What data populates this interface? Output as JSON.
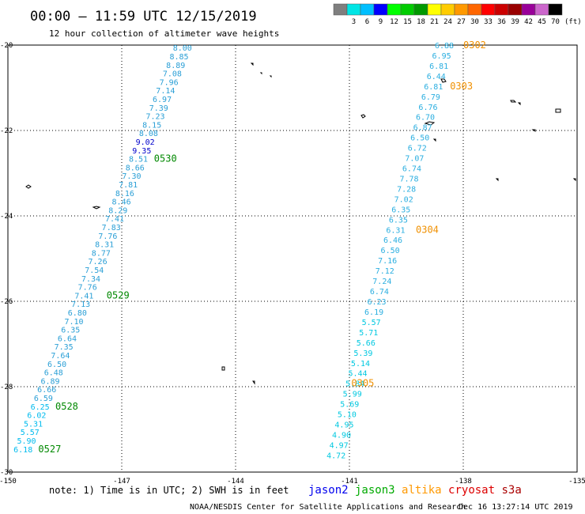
{
  "header": {
    "title": "00:00 — 11:59 UTC 12/15/2019",
    "subtitle": "12 hour collection of altimeter wave heights"
  },
  "colorbar": {
    "unit": "(ft)",
    "stops": [
      {
        "label": "",
        "color": "#7f7f7f"
      },
      {
        "label": "3",
        "color": "#00e5e5"
      },
      {
        "label": "6",
        "color": "#00bfff"
      },
      {
        "label": "9",
        "color": "#0000ff"
      },
      {
        "label": "12",
        "color": "#00ff00"
      },
      {
        "label": "15",
        "color": "#00cc00"
      },
      {
        "label": "18",
        "color": "#009900"
      },
      {
        "label": "21",
        "color": "#ffff00"
      },
      {
        "label": "24",
        "color": "#ffcc00"
      },
      {
        "label": "27",
        "color": "#ff9900"
      },
      {
        "label": "30",
        "color": "#ff6600"
      },
      {
        "label": "33",
        "color": "#ff0000"
      },
      {
        "label": "36",
        "color": "#cc0000"
      },
      {
        "label": "39",
        "color": "#990000"
      },
      {
        "label": "42",
        "color": "#990099"
      },
      {
        "label": "45",
        "color": "#cc66cc"
      },
      {
        "label": "70",
        "color": "#000000"
      }
    ]
  },
  "axes": {
    "lon_ticks": [
      "-150",
      "-147",
      "-144",
      "-141",
      "-138",
      "-135"
    ],
    "lat_ticks": [
      "-20",
      "-22",
      "-24",
      "-26",
      "-28",
      "-30"
    ]
  },
  "tracks": [
    {
      "color": "#2a9fd6",
      "points": [
        {
          "lat": -20.06,
          "v": "8.00"
        },
        {
          "lat": -20.26,
          "v": "8.85"
        },
        {
          "lat": -20.46,
          "v": "8.89"
        },
        {
          "lat": -20.66,
          "v": "7.08"
        },
        {
          "lat": -20.86,
          "v": "7.96"
        },
        {
          "lat": -21.06,
          "v": "7.14"
        },
        {
          "lat": -21.26,
          "v": "6.97"
        },
        {
          "lat": -21.46,
          "v": "7.39"
        },
        {
          "lat": -21.66,
          "v": "7.23"
        },
        {
          "lat": -21.86,
          "v": "8.15"
        },
        {
          "lat": -22.06,
          "v": "8.08"
        },
        {
          "lat": -22.26,
          "v": "9.02",
          "c": "#0000cc"
        },
        {
          "lat": -22.46,
          "v": "9.35",
          "c": "#0000cc"
        },
        {
          "lat": -22.66,
          "v": "8.51"
        },
        {
          "lat": -22.86,
          "v": "8.66"
        },
        {
          "lat": -23.06,
          "v": "7.30"
        },
        {
          "lat": -23.26,
          "v": "7.81"
        },
        {
          "lat": -23.46,
          "v": "8.16"
        },
        {
          "lat": -23.66,
          "v": "8.46"
        },
        {
          "lat": -23.86,
          "v": "8.29"
        },
        {
          "lat": -24.06,
          "v": "7.41"
        },
        {
          "lat": -24.26,
          "v": "7.83"
        },
        {
          "lat": -24.46,
          "v": "7.76"
        },
        {
          "lat": -24.66,
          "v": "8.31"
        },
        {
          "lat": -24.86,
          "v": "8.77"
        },
        {
          "lat": -25.06,
          "v": "7.26"
        },
        {
          "lat": -25.26,
          "v": "7.54"
        },
        {
          "lat": -25.46,
          "v": "7.34"
        },
        {
          "lat": -25.66,
          "v": "7.76"
        },
        {
          "lat": -25.86,
          "v": "7.41"
        },
        {
          "lat": -26.06,
          "v": "7.13"
        },
        {
          "lat": -26.26,
          "v": "6.80"
        },
        {
          "lat": -26.46,
          "v": "7.10"
        },
        {
          "lat": -26.66,
          "v": "6.35"
        },
        {
          "lat": -26.86,
          "v": "6.64"
        },
        {
          "lat": -27.06,
          "v": "7.35"
        },
        {
          "lat": -27.26,
          "v": "7.64"
        },
        {
          "lat": -27.46,
          "v": "6.50"
        },
        {
          "lat": -27.66,
          "v": "6.48"
        },
        {
          "lat": -27.86,
          "v": "6.89"
        },
        {
          "lat": -28.06,
          "v": "6.66"
        },
        {
          "lat": -28.26,
          "v": "6.59"
        },
        {
          "lat": -28.46,
          "v": "6.25",
          "c": "#00bbee"
        },
        {
          "lat": -28.66,
          "v": "6.02",
          "c": "#00bbee"
        },
        {
          "lat": -28.86,
          "v": "5.31",
          "c": "#00bbee"
        },
        {
          "lat": -29.06,
          "v": "5.57",
          "c": "#00bbee"
        },
        {
          "lat": -29.26,
          "v": "5.90",
          "c": "#00bbee"
        },
        {
          "lat": -29.46,
          "v": "6.18",
          "c": "#00bbee"
        }
      ],
      "time_labels": [
        {
          "text": "0530",
          "lon": -146.15,
          "lat": -22.66
        },
        {
          "text": "0529",
          "lon": -147.4,
          "lat": -25.86
        },
        {
          "text": "0528",
          "lon": -148.75,
          "lat": -28.46
        },
        {
          "text": "0527",
          "lon": -149.2,
          "lat": -29.46
        }
      ],
      "time_color": "#008800"
    },
    {
      "color": "#2aaee0",
      "points": [
        {
          "lat": -20.0,
          "v": "6.88"
        },
        {
          "lat": -20.24,
          "v": "6.95"
        },
        {
          "lat": -20.48,
          "v": "6.81"
        },
        {
          "lat": -20.72,
          "v": "6.44"
        },
        {
          "lat": -20.96,
          "v": "6.81"
        },
        {
          "lat": -21.2,
          "v": "6.79"
        },
        {
          "lat": -21.44,
          "v": "6.76"
        },
        {
          "lat": -21.68,
          "v": "6.70"
        },
        {
          "lat": -21.92,
          "v": "6.87"
        },
        {
          "lat": -22.16,
          "v": "6.50"
        },
        {
          "lat": -22.4,
          "v": "6.72"
        },
        {
          "lat": -22.64,
          "v": "7.07"
        },
        {
          "lat": -22.88,
          "v": "6.74"
        },
        {
          "lat": -23.12,
          "v": "7.78"
        },
        {
          "lat": -23.36,
          "v": "7.28"
        },
        {
          "lat": -23.6,
          "v": "7.02"
        },
        {
          "lat": -23.84,
          "v": "6.35"
        },
        {
          "lat": -24.08,
          "v": "6.35"
        },
        {
          "lat": -24.32,
          "v": "6.31"
        },
        {
          "lat": -24.56,
          "v": "6.46"
        },
        {
          "lat": -24.8,
          "v": "6.50"
        },
        {
          "lat": -25.04,
          "v": "7.16"
        },
        {
          "lat": -25.28,
          "v": "7.12"
        },
        {
          "lat": -25.52,
          "v": "7.24"
        },
        {
          "lat": -25.76,
          "v": "6.74"
        },
        {
          "lat": -26.0,
          "v": "6.23"
        },
        {
          "lat": -26.24,
          "v": "6.19"
        },
        {
          "lat": -26.48,
          "v": "5.57",
          "c": "#00c8e0"
        },
        {
          "lat": -26.72,
          "v": "5.71",
          "c": "#00c8e0"
        },
        {
          "lat": -26.96,
          "v": "5.66",
          "c": "#00c8e0"
        },
        {
          "lat": -27.2,
          "v": "5.39",
          "c": "#00c8e0"
        },
        {
          "lat": -27.44,
          "v": "5.14",
          "c": "#00c8e0"
        },
        {
          "lat": -27.68,
          "v": "5.44",
          "c": "#00c8e0"
        },
        {
          "lat": -27.92,
          "v": "5.84",
          "c": "#00c8e0"
        },
        {
          "lat": -28.16,
          "v": "5.99",
          "c": "#00c8e0"
        },
        {
          "lat": -28.4,
          "v": "5.69",
          "c": "#00c8e0"
        },
        {
          "lat": -28.64,
          "v": "5.10",
          "c": "#00c8e0"
        },
        {
          "lat": -28.88,
          "v": "4.95",
          "c": "#00c8e0"
        },
        {
          "lat": -29.12,
          "v": "4.90",
          "c": "#00c8e0"
        },
        {
          "lat": -29.36,
          "v": "4.97",
          "c": "#00c8e0"
        },
        {
          "lat": -29.6,
          "v": "4.72",
          "c": "#00c8e0"
        }
      ],
      "time_labels": [
        {
          "text": "0302",
          "lon": -138.0,
          "lat": -20.0
        },
        {
          "text": "0303",
          "lon": -138.35,
          "lat": -20.96
        },
        {
          "text": "0304",
          "lon": -139.25,
          "lat": -24.32
        },
        {
          "text": "0305",
          "lon": -140.95,
          "lat": -27.92
        }
      ],
      "time_color": "#f09000"
    }
  ],
  "footer": {
    "note": "note: 1) Time is in UTC; 2) SWH is in feet",
    "missions": [
      {
        "text": "jason2",
        "color": "#0000ee"
      },
      {
        "text": "jason3",
        "color": "#00aa00"
      },
      {
        "text": "altika",
        "color": "#ff9900"
      },
      {
        "text": "cryosat",
        "color": "#dd0000"
      },
      {
        "text": "s3a",
        "color": "#aa0000"
      }
    ],
    "credit": "NOAA/NESDIS Center for Satellite Applications and Research",
    "stamp": "Dec 16 13:27:14 UTC 2019"
  }
}
